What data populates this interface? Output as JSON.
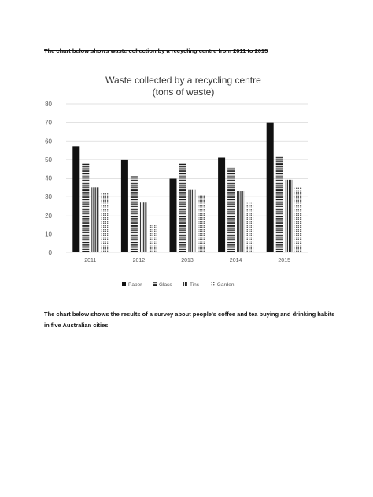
{
  "page": {
    "heading1": "The chart below shows waste collection by a recycling centre from 2011 to 2015",
    "heading2": "The chart below shows the results of a survey about people's coffee and tea buying and drinking habits in five Australian cities"
  },
  "chart_data": {
    "type": "bar",
    "title": "Waste collected by a recycling centre",
    "subtitle": "(tons of waste)",
    "categories": [
      "2011",
      "2012",
      "2013",
      "2014",
      "2015"
    ],
    "series": [
      {
        "name": "Paper",
        "values": [
          57,
          50,
          40,
          51,
          70
        ],
        "pattern": "solid"
      },
      {
        "name": "Glass",
        "values": [
          48,
          41,
          48,
          46,
          52
        ],
        "pattern": "horizontal"
      },
      {
        "name": "Tins",
        "values": [
          35,
          27,
          34,
          33,
          39
        ],
        "pattern": "vertical"
      },
      {
        "name": "Garden",
        "values": [
          32,
          15,
          31,
          27,
          35
        ],
        "pattern": "dots"
      }
    ],
    "xlabel": "",
    "ylabel": "",
    "ylim": [
      0,
      80
    ],
    "yticks": [
      "0",
      "10",
      "20",
      "30",
      "40",
      "50",
      "60",
      "70",
      "80"
    ],
    "grid": true,
    "legend": "bottom",
    "colors": {
      "bar": "#111111",
      "grid": "#d9d9d9",
      "text": "#555555",
      "title": "#333333"
    }
  }
}
